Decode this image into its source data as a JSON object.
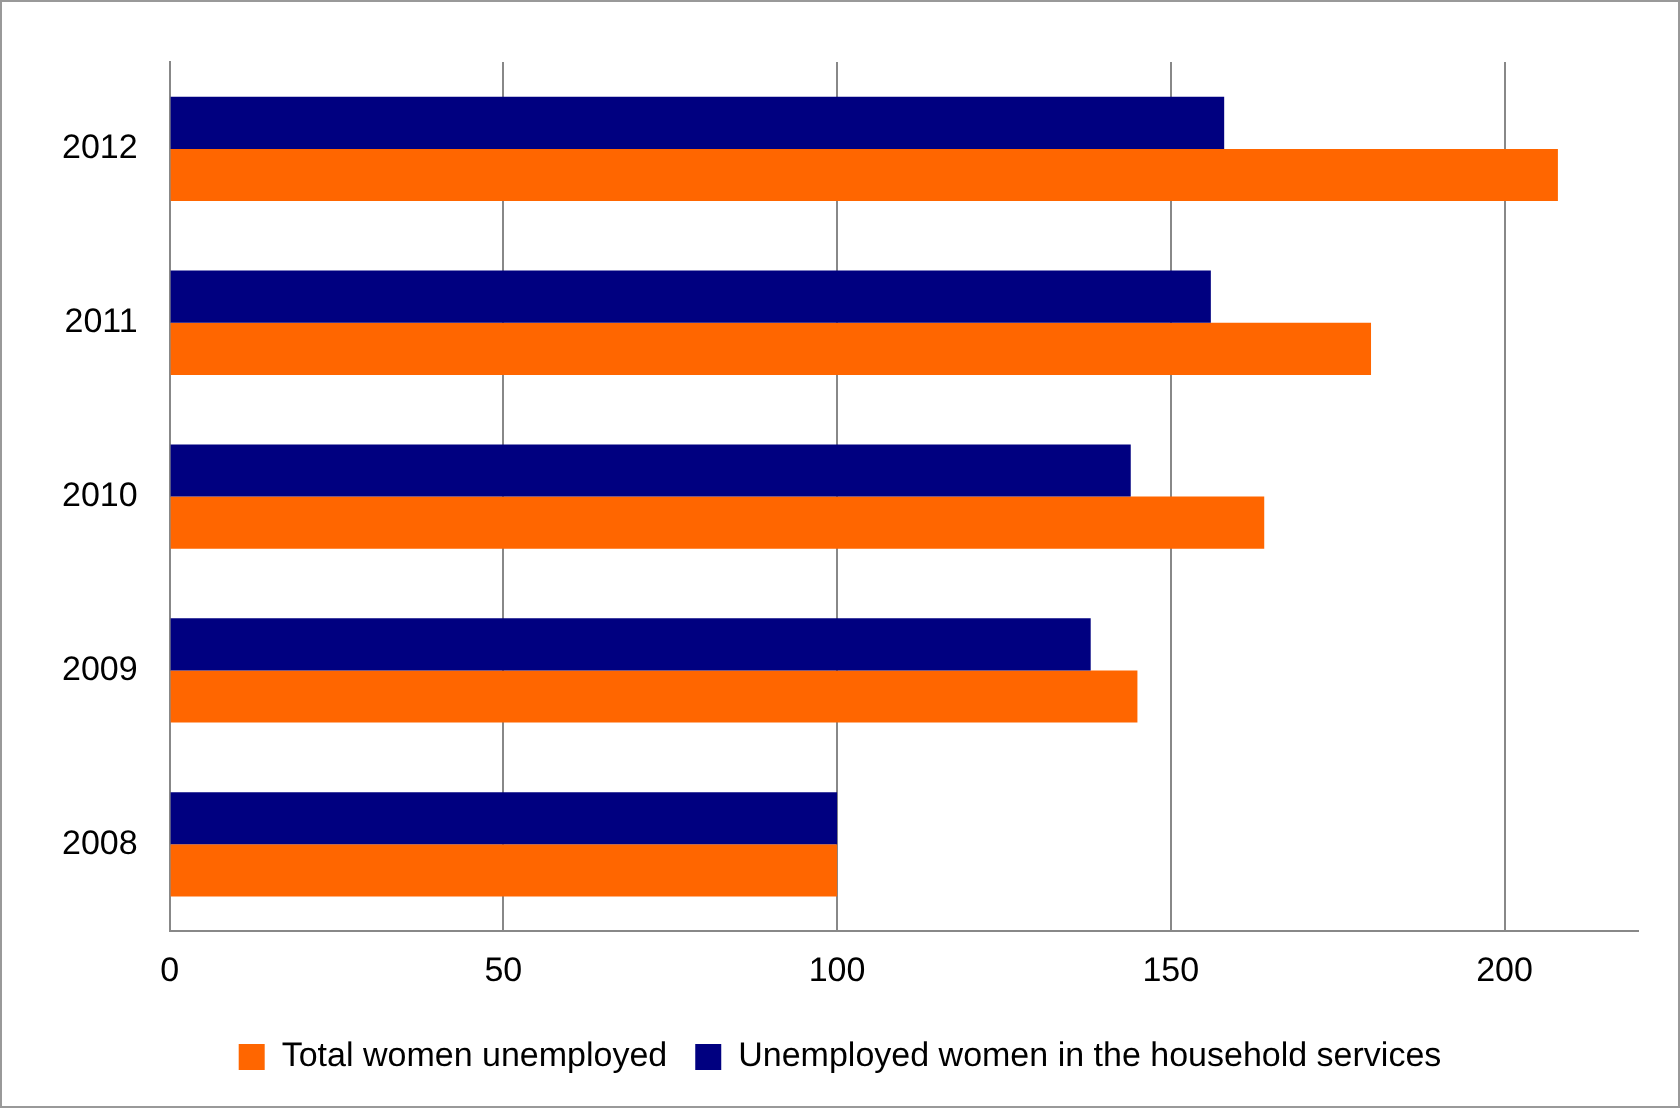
{
  "chart_data": {
    "type": "bar",
    "orientation": "horizontal",
    "categories": [
      "2012",
      "2011",
      "2010",
      "2009",
      "2008"
    ],
    "series": [
      {
        "name": "Total women unemployed",
        "color": "#ff6600",
        "values": [
          208,
          180,
          164,
          145,
          100
        ]
      },
      {
        "name": "Unemployed women in the household services",
        "color": "#000080",
        "values": [
          158,
          156,
          144,
          138,
          100
        ]
      }
    ],
    "xlim": [
      0,
      220
    ],
    "xticks": [
      0,
      50,
      100,
      150,
      200
    ],
    "grid": "x",
    "legend": "bottom"
  }
}
